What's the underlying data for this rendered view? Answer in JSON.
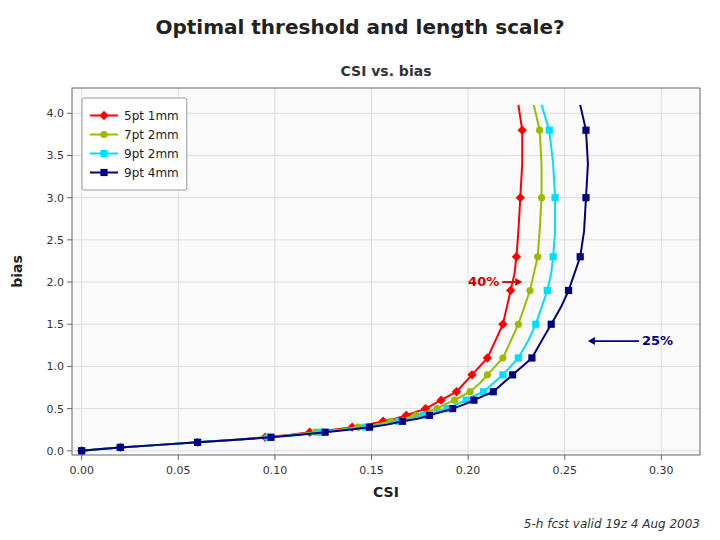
{
  "chart_data": {
    "type": "line",
    "title": "Optimal threshold and length scale?",
    "subtitle": "CSI vs. bias",
    "x_label": "CSI",
    "y_label": "bias",
    "footer": "5-h fcst valid 19z 4 Aug 2003",
    "xlim": [
      -0.005,
      0.32
    ],
    "ylim": [
      -0.05,
      4.3
    ],
    "xticks": [
      {
        "value": 0.0,
        "label": "0.00"
      },
      {
        "value": 0.05,
        "label": "0.05"
      },
      {
        "value": 0.1,
        "label": "0.10"
      },
      {
        "value": 0.15,
        "label": "0.15"
      },
      {
        "value": 0.2,
        "label": "0.20"
      },
      {
        "value": 0.25,
        "label": "0.25"
      },
      {
        "value": 0.3,
        "label": "0.30"
      }
    ],
    "yticks": [
      {
        "value": 0.0,
        "label": "0.0"
      },
      0.5,
      {
        "value": 1.0,
        "label": "1.0"
      },
      1.5,
      {
        "value": 2.0,
        "label": "2.0"
      },
      2.5,
      {
        "value": 3.0,
        "label": "3.0"
      },
      3.5,
      {
        "value": 4.0,
        "label": "4.0"
      }
    ],
    "grid": true,
    "legend": "upper left",
    "series": [
      {
        "name": "5pt 1mm",
        "color": "#ff0000",
        "marker": "diamond",
        "x": [
          0.0,
          0.01,
          0.02,
          0.04,
          0.06,
          0.08,
          0.095,
          0.108,
          0.118,
          0.13,
          0.14,
          0.148,
          0.156,
          0.162,
          0.168,
          0.173,
          0.178,
          0.182,
          0.186,
          0.19,
          0.194,
          0.198,
          0.202,
          0.206,
          0.21,
          0.214,
          0.218,
          0.22,
          0.222,
          0.224,
          0.225,
          0.226,
          0.227,
          0.228,
          0.228,
          0.226
        ],
        "values": [
          0.0,
          0.02,
          0.04,
          0.07,
          0.1,
          0.13,
          0.16,
          0.19,
          0.22,
          0.25,
          0.28,
          0.31,
          0.35,
          0.38,
          0.42,
          0.46,
          0.5,
          0.55,
          0.6,
          0.65,
          0.7,
          0.8,
          0.9,
          1.0,
          1.1,
          1.3,
          1.5,
          1.7,
          1.9,
          2.1,
          2.3,
          2.6,
          3.0,
          3.4,
          3.8,
          4.1
        ]
      },
      {
        "name": "7pt 2mm",
        "color": "#99bb00",
        "marker": "circle",
        "x": [
          0.0,
          0.01,
          0.02,
          0.04,
          0.06,
          0.08,
          0.096,
          0.11,
          0.121,
          0.133,
          0.143,
          0.152,
          0.16,
          0.167,
          0.173,
          0.178,
          0.184,
          0.188,
          0.193,
          0.197,
          0.201,
          0.206,
          0.21,
          0.214,
          0.218,
          0.222,
          0.226,
          0.229,
          0.232,
          0.234,
          0.236,
          0.237,
          0.238,
          0.238,
          0.237,
          0.234
        ],
        "values": [
          0.0,
          0.02,
          0.04,
          0.07,
          0.1,
          0.13,
          0.16,
          0.19,
          0.22,
          0.25,
          0.28,
          0.31,
          0.35,
          0.38,
          0.42,
          0.46,
          0.5,
          0.55,
          0.6,
          0.65,
          0.7,
          0.8,
          0.9,
          1.0,
          1.1,
          1.3,
          1.5,
          1.7,
          1.9,
          2.1,
          2.3,
          2.6,
          3.0,
          3.4,
          3.8,
          4.1
        ]
      },
      {
        "name": "9pt 2mm",
        "color": "#00ddff",
        "marker": "square",
        "x": [
          0.0,
          0.01,
          0.02,
          0.04,
          0.06,
          0.08,
          0.097,
          0.112,
          0.124,
          0.136,
          0.147,
          0.156,
          0.164,
          0.171,
          0.177,
          0.183,
          0.189,
          0.194,
          0.199,
          0.203,
          0.208,
          0.213,
          0.218,
          0.222,
          0.226,
          0.231,
          0.235,
          0.238,
          0.241,
          0.243,
          0.244,
          0.245,
          0.245,
          0.244,
          0.242,
          0.238
        ],
        "values": [
          0.0,
          0.02,
          0.04,
          0.07,
          0.1,
          0.13,
          0.16,
          0.19,
          0.22,
          0.25,
          0.28,
          0.31,
          0.35,
          0.38,
          0.42,
          0.46,
          0.5,
          0.55,
          0.6,
          0.65,
          0.7,
          0.8,
          0.9,
          1.0,
          1.1,
          1.3,
          1.5,
          1.7,
          1.9,
          2.1,
          2.3,
          2.6,
          3.0,
          3.4,
          3.8,
          4.1
        ]
      },
      {
        "name": "9pt 4mm",
        "color": "#000080",
        "marker": "square",
        "x": [
          0.0,
          0.01,
          0.02,
          0.04,
          0.06,
          0.08,
          0.098,
          0.113,
          0.126,
          0.138,
          0.149,
          0.158,
          0.166,
          0.174,
          0.18,
          0.186,
          0.192,
          0.198,
          0.203,
          0.208,
          0.213,
          0.218,
          0.223,
          0.228,
          0.233,
          0.238,
          0.243,
          0.248,
          0.252,
          0.255,
          0.258,
          0.26,
          0.261,
          0.262,
          0.261,
          0.258
        ],
        "values": [
          0.0,
          0.02,
          0.04,
          0.07,
          0.1,
          0.13,
          0.16,
          0.19,
          0.22,
          0.25,
          0.28,
          0.31,
          0.35,
          0.38,
          0.42,
          0.46,
          0.5,
          0.55,
          0.6,
          0.65,
          0.7,
          0.8,
          0.9,
          1.0,
          1.1,
          1.3,
          1.5,
          1.7,
          1.9,
          2.1,
          2.3,
          2.6,
          3.0,
          3.4,
          3.8,
          4.1
        ]
      }
    ],
    "annotations": [
      {
        "text": "40%",
        "x": 0.228,
        "y": 2.0,
        "text_x": 0.2,
        "text_y": 2.0,
        "color": "#cc0000"
      },
      {
        "text": "25%",
        "x": 0.262,
        "y": 1.3,
        "text_x": 0.29,
        "text_y": 1.3,
        "color": "#000080"
      }
    ]
  }
}
